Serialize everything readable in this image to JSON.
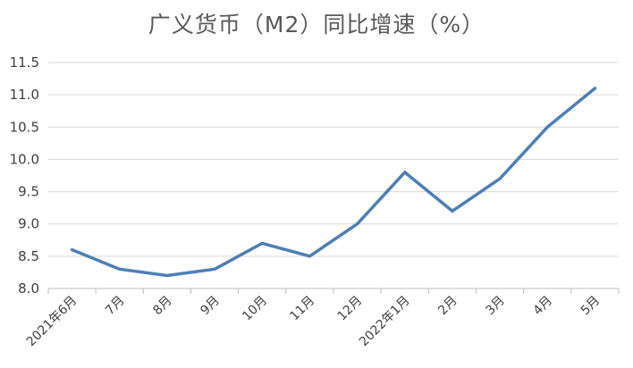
{
  "chart_data": {
    "type": "line",
    "title": "广义货币（M2）同比增速（%）",
    "categories": [
      "2021年6月",
      "7月",
      "8月",
      "9月",
      "10月",
      "11月",
      "12月",
      "2022年1月",
      "2月",
      "3月",
      "4月",
      "5月"
    ],
    "series": [
      {
        "values": [
          8.6,
          8.3,
          8.2,
          8.3,
          8.7,
          8.5,
          9.0,
          9.8,
          9.2,
          9.7,
          10.5,
          11.1
        ]
      }
    ],
    "ylim": [
      8.0,
      11.5
    ],
    "yticks": [
      "8.0",
      "8.5",
      "9.0",
      "9.5",
      "10.0",
      "10.5",
      "11.0",
      "11.5"
    ],
    "grid": true,
    "line_color": "#4e7fb5"
  }
}
